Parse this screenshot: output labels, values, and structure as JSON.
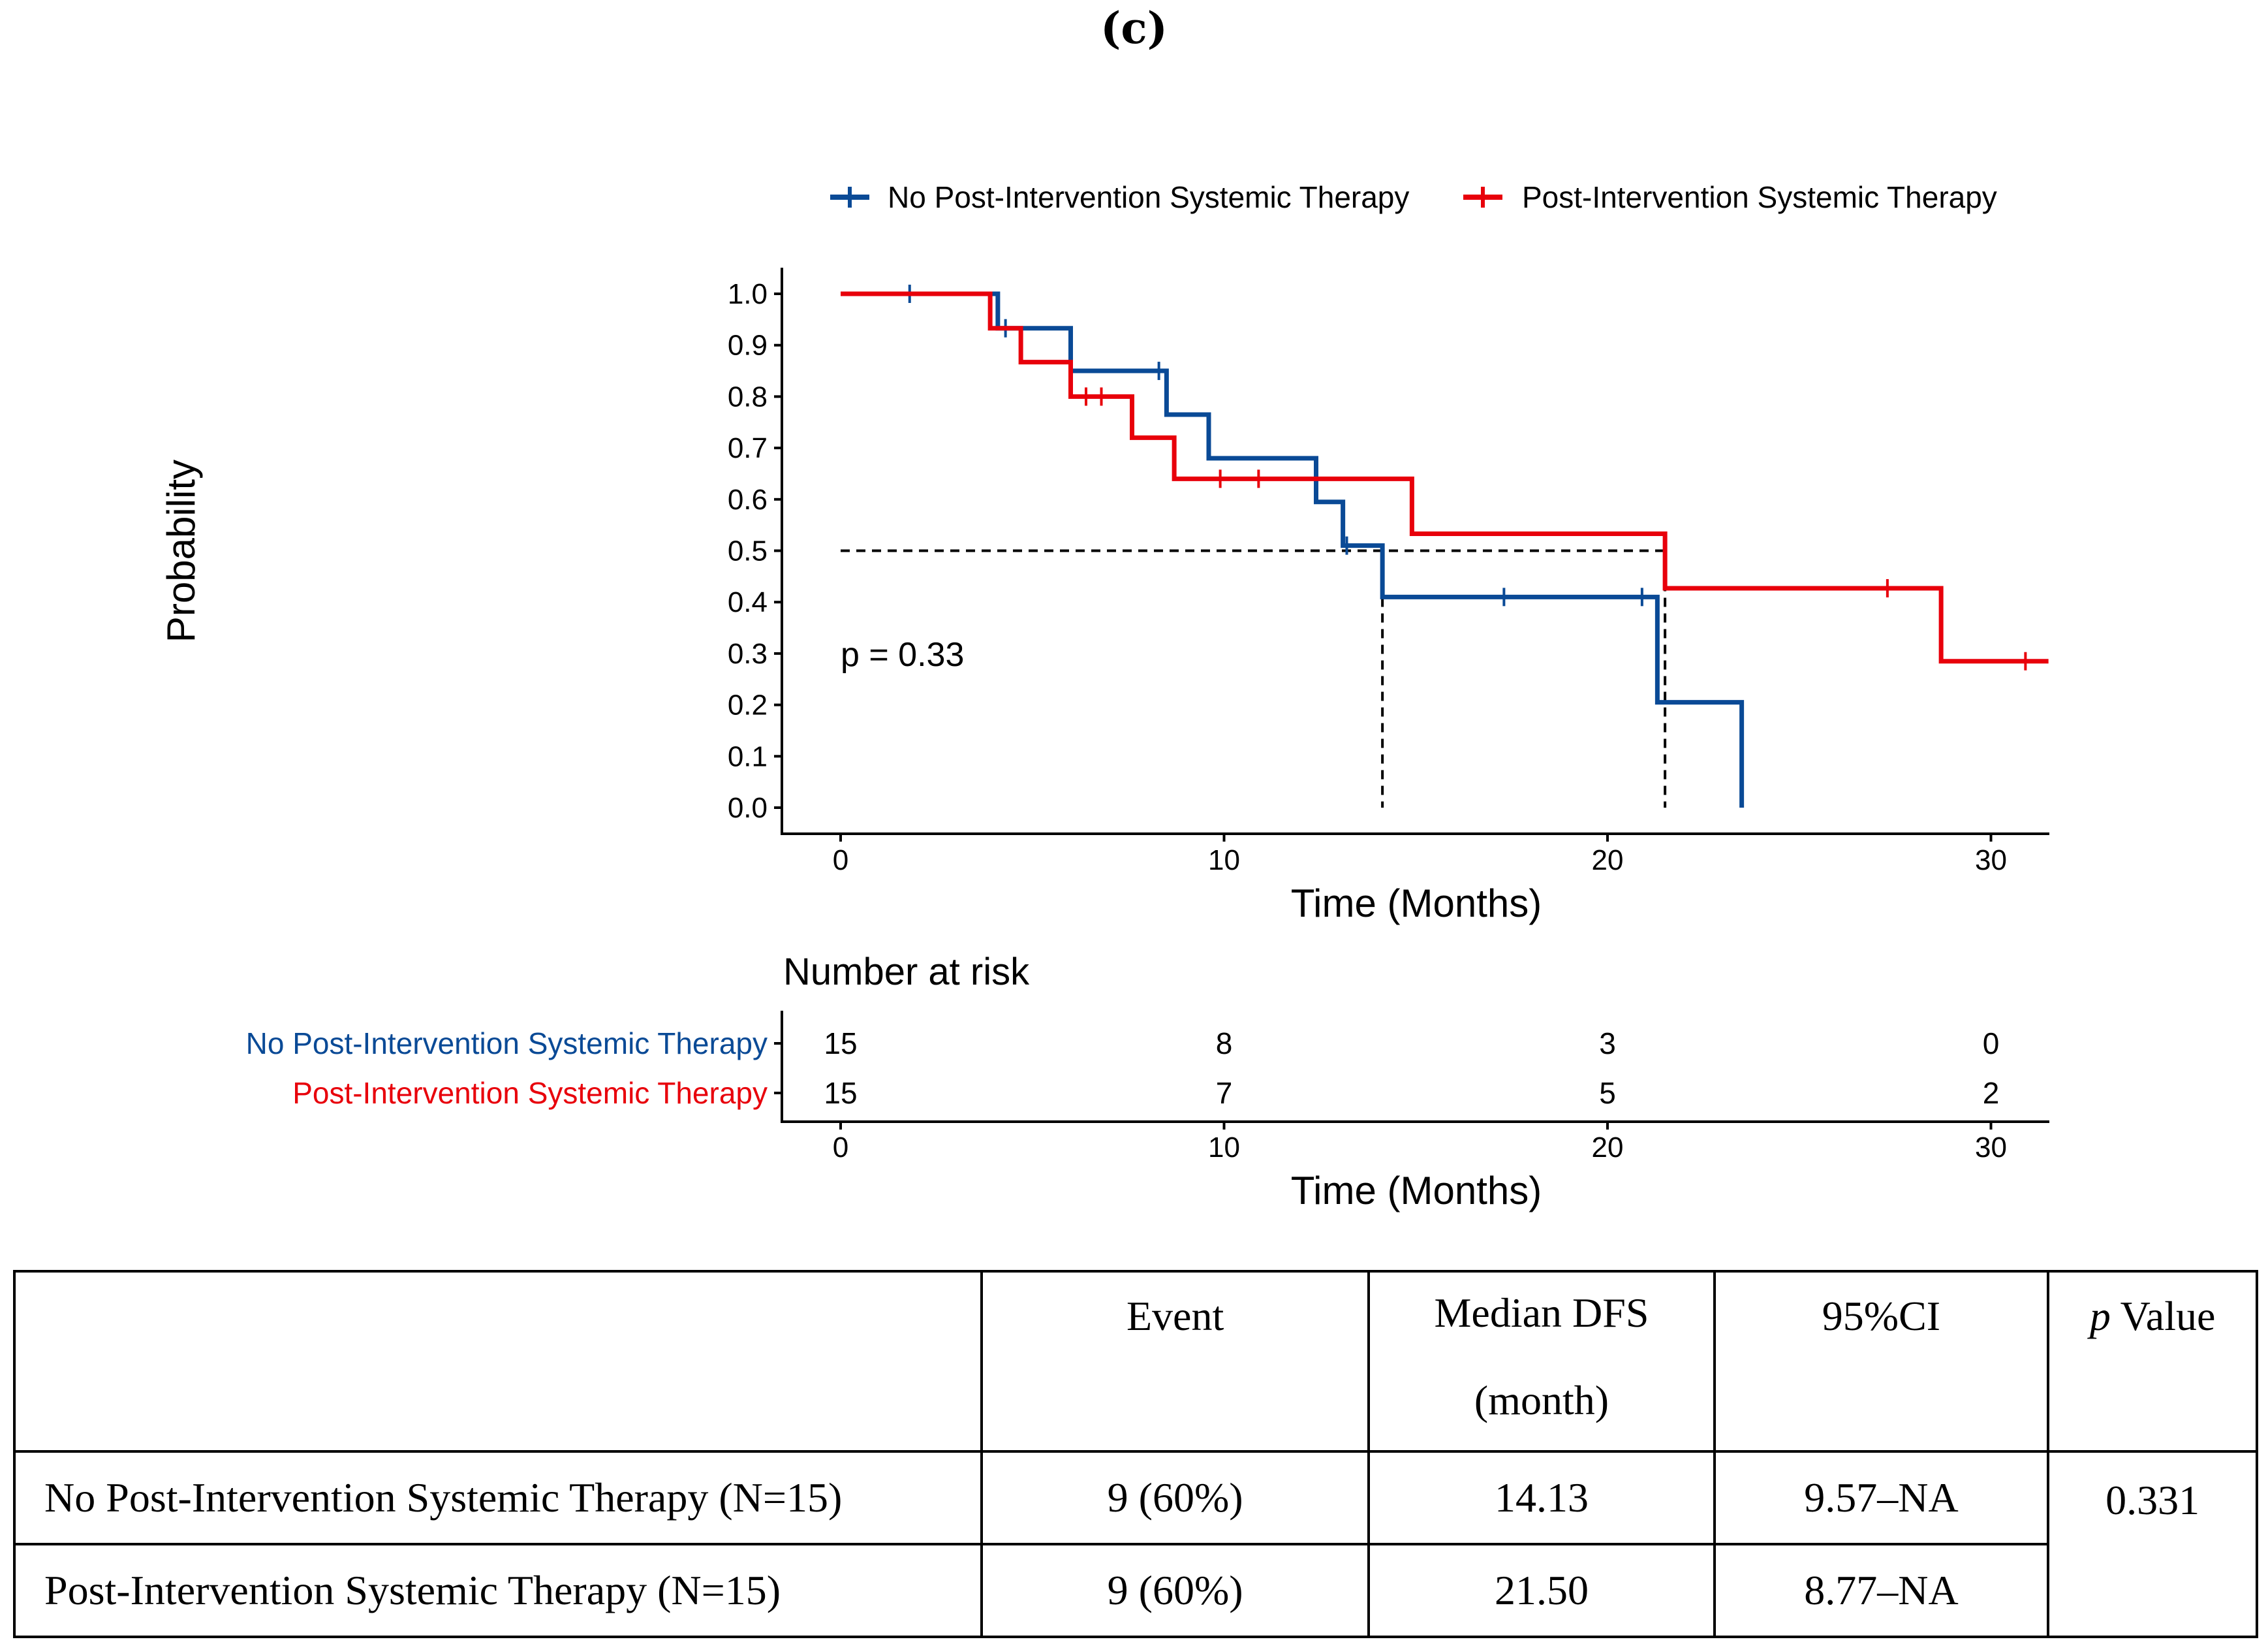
{
  "panel_label": "(c)",
  "chart_data": {
    "type": "line",
    "subtype": "kaplan-meier",
    "title": "",
    "xlabel": "Time (Months)",
    "ylabel": "Probability",
    "xlim": [
      -1.5,
      31.5
    ],
    "ylim": [
      0,
      1.0
    ],
    "x_ticks": [
      "0",
      "10",
      "20",
      "30"
    ],
    "y_ticks": [
      "0.0",
      "0.1",
      "0.2",
      "0.3",
      "0.4",
      "0.5",
      "0.6",
      "0.7",
      "0.8",
      "0.9",
      "1.0"
    ],
    "legend_position": "top",
    "p_value_text": "p = 0.33",
    "median_line": {
      "y": 0.5,
      "x_medians": [
        14.13,
        21.5
      ]
    },
    "series": [
      {
        "name": "No Post-Intervention Systemic Therapy",
        "color": "#0a4a96",
        "steps": [
          [
            0,
            1.0
          ],
          [
            4.1,
            0.933
          ],
          [
            6.0,
            0.85
          ],
          [
            8.5,
            0.765
          ],
          [
            9.6,
            0.68
          ],
          [
            12.4,
            0.595
          ],
          [
            13.1,
            0.51
          ],
          [
            14.13,
            0.41
          ],
          [
            21.3,
            0.205
          ],
          [
            23.5,
            0.0
          ]
        ],
        "end_x": 23.5,
        "censors": [
          [
            1.8,
            1.0
          ],
          [
            4.3,
            0.933
          ],
          [
            8.3,
            0.85
          ],
          [
            13.2,
            0.51
          ],
          [
            17.3,
            0.41
          ],
          [
            20.9,
            0.41
          ]
        ]
      },
      {
        "name": "Post-Intervention Systemic Therapy",
        "color": "#e8000b",
        "steps": [
          [
            0,
            1.0
          ],
          [
            3.9,
            0.933
          ],
          [
            4.7,
            0.867
          ],
          [
            6.0,
            0.8
          ],
          [
            7.6,
            0.72
          ],
          [
            8.7,
            0.64
          ],
          [
            14.9,
            0.533
          ],
          [
            21.5,
            0.427
          ],
          [
            28.7,
            0.285
          ]
        ],
        "end_x": 31.5,
        "censors": [
          [
            6.4,
            0.8
          ],
          [
            6.8,
            0.8
          ],
          [
            9.9,
            0.64
          ],
          [
            10.9,
            0.64
          ],
          [
            27.3,
            0.427
          ],
          [
            30.9,
            0.285
          ]
        ]
      }
    ],
    "risk_table": {
      "title": "Number at risk",
      "xlabel": "Time (Months)",
      "times": [
        0,
        10,
        20,
        30
      ],
      "time_labels": [
        "0",
        "10",
        "20",
        "30"
      ],
      "rows": [
        {
          "label": "No Post-Intervention Systemic Therapy",
          "values": [
            "15",
            "8",
            "3",
            "0"
          ],
          "color": "#0a4a96"
        },
        {
          "label": "Post-Intervention Systemic Therapy",
          "values": [
            "15",
            "7",
            "5",
            "2"
          ],
          "color": "#e8000b"
        }
      ]
    }
  },
  "summary_table": {
    "headers": {
      "label": "",
      "event": "Event",
      "median_line1": "Median DFS",
      "median_line2": "(month)",
      "ci": "95%CI",
      "p_italic": "p",
      "p_rest": " Value"
    },
    "rows": [
      {
        "label": "No Post-Intervention Systemic Therapy (N=15)",
        "event": "9 (60%)",
        "median": "14.13",
        "ci": "9.57–NA"
      },
      {
        "label": "Post-Intervention Systemic Therapy (N=15)",
        "event": "9 (60%)",
        "median": "21.50",
        "ci": "8.77–NA"
      }
    ],
    "p_value": "0.331"
  }
}
